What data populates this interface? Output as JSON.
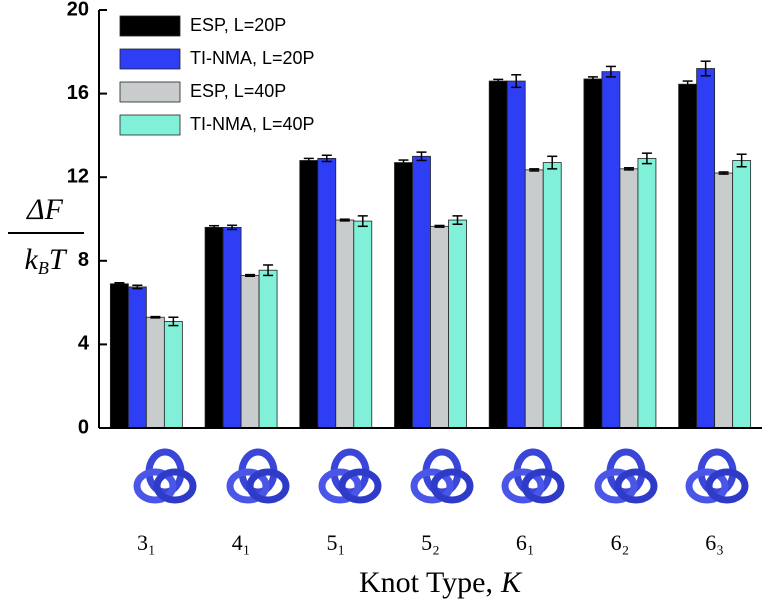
{
  "chart_data": {
    "type": "bar",
    "categories": [
      "3₁",
      "4₁",
      "5₁",
      "5₂",
      "6₁",
      "6₂",
      "6₃"
    ],
    "series": [
      {
        "name": "ESP, L=20P",
        "color": "#000000",
        "values": [
          6.9,
          9.6,
          12.8,
          12.7,
          16.6,
          16.7,
          16.45
        ],
        "errors": [
          0.05,
          0.08,
          0.1,
          0.12,
          0.08,
          0.1,
          0.15
        ]
      },
      {
        "name": "TI-NMA, L=20P",
        "color": "#2e3ef5",
        "values": [
          6.75,
          9.6,
          12.9,
          13.0,
          16.6,
          17.05,
          17.2
        ],
        "errors": [
          0.08,
          0.1,
          0.15,
          0.2,
          0.3,
          0.25,
          0.35
        ]
      },
      {
        "name": "ESP, L=40P",
        "color": "#c8cccc",
        "values": [
          5.3,
          7.3,
          9.95,
          9.65,
          12.35,
          12.4,
          12.2
        ],
        "errors": [
          0.03,
          0.04,
          0.04,
          0.04,
          0.05,
          0.05,
          0.05
        ]
      },
      {
        "name": "TI-NMA, L=40P",
        "color": "#80f0d8",
        "values": [
          5.1,
          7.55,
          9.9,
          9.95,
          12.7,
          12.9,
          12.8
        ],
        "errors": [
          0.2,
          0.25,
          0.25,
          0.2,
          0.3,
          0.25,
          0.3
        ]
      }
    ],
    "ylim": [
      0,
      20
    ],
    "yticks": [
      0,
      4,
      8,
      12,
      16,
      20
    ],
    "y_label": {
      "numerator": "ΔF",
      "denominator": [
        "k",
        "B",
        "T"
      ]
    },
    "x_label": {
      "text": "Knot Type,",
      "symbol": "K"
    },
    "legend": "top-left"
  }
}
